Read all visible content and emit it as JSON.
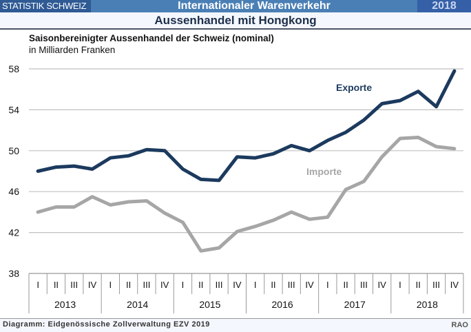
{
  "header": {
    "brand": "STATISTIK SCHWEIZ",
    "title": "Internationaler Warenverkehr",
    "year": "2018",
    "subtitle": "Aussenhandel mit Hongkong"
  },
  "footer": {
    "source": "Diagramm: Eidgenössische Zollverwaltung EZV 2019",
    "code": "RAO"
  },
  "chart_data": {
    "type": "line",
    "title": "Saisonbereinigter Aussenhandel der Schweiz (nominal)",
    "subtitle": "in Milliarden Franken",
    "xlabel": "",
    "ylabel": "",
    "ylim": [
      38,
      58
    ],
    "yticks": [
      38,
      42,
      46,
      50,
      54,
      58
    ],
    "grid": true,
    "quarters": [
      "I",
      "II",
      "III",
      "IV"
    ],
    "years": [
      "2013",
      "2014",
      "2015",
      "2016",
      "2017",
      "2018"
    ],
    "series": [
      {
        "name": "Exporte",
        "color": "#1c3a5e",
        "values": [
          48.0,
          48.4,
          48.5,
          48.2,
          49.3,
          49.5,
          50.1,
          50.0,
          48.2,
          47.2,
          47.1,
          49.4,
          49.3,
          49.7,
          50.5,
          50.0,
          51.0,
          51.8,
          53.0,
          54.6,
          54.9,
          55.8,
          54.3,
          57.8
        ]
      },
      {
        "name": "Importe",
        "color": "#a6a6a6",
        "values": [
          44.0,
          44.5,
          44.5,
          45.5,
          44.7,
          45.0,
          45.1,
          43.9,
          43.0,
          40.2,
          40.5,
          42.1,
          42.6,
          43.2,
          44.0,
          43.3,
          43.5,
          46.2,
          47.0,
          49.4,
          51.2,
          51.3,
          50.4,
          50.2
        ]
      }
    ]
  }
}
